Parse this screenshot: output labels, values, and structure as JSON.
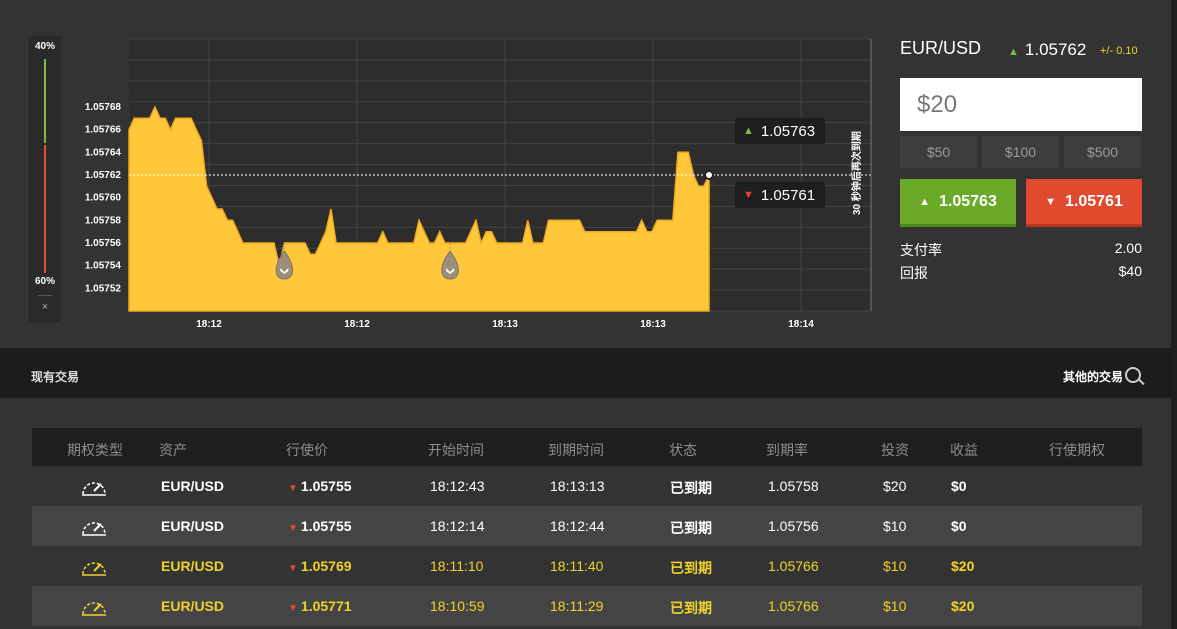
{
  "ratio": {
    "top_pct": "40%",
    "bottom_pct": "60%",
    "close": "×",
    "up_share": 0.4
  },
  "chart": {
    "y_ticks": [
      "1.05768",
      "1.05766",
      "1.05764",
      "1.05762",
      "1.05760",
      "1.05758",
      "1.05756",
      "1.05754",
      "1.05752"
    ],
    "x_ticks": [
      "18:12",
      "18:12",
      "18:13",
      "18:13",
      "18:14"
    ],
    "expiry_label": "30 秒钟后再次到期",
    "high_tag": "1.05763",
    "low_tag": "1.05761"
  },
  "chart_data": {
    "type": "area",
    "series": [
      {
        "values": [
          1.05766,
          1.05767,
          1.05767,
          1.05767,
          1.05767,
          1.05768,
          1.05767,
          1.05767,
          1.05766,
          1.05767,
          1.05767,
          1.05767,
          1.05767,
          1.05766,
          1.05765,
          1.05761,
          1.0576,
          1.05759,
          1.05759,
          1.05758,
          1.05758,
          1.05757,
          1.05756,
          1.05756,
          1.05756,
          1.05756,
          1.05756,
          1.05756,
          1.05756,
          1.05754,
          1.05756,
          1.05756,
          1.05756,
          1.05756,
          1.05756,
          1.05755,
          1.05755,
          1.05756,
          1.05757,
          1.05759,
          1.05756,
          1.05756,
          1.05756,
          1.05756,
          1.05756,
          1.05756,
          1.05756,
          1.05756,
          1.05756,
          1.05757,
          1.05756,
          1.05756,
          1.05756,
          1.05756,
          1.05756,
          1.05756,
          1.05758,
          1.05757,
          1.05756,
          1.05756,
          1.05757,
          1.05756,
          1.05756,
          1.05756,
          1.05756,
          1.05756,
          1.05757,
          1.05758,
          1.05756,
          1.05757,
          1.05757,
          1.05756,
          1.05756,
          1.05756,
          1.05756,
          1.05756,
          1.05756,
          1.05758,
          1.05756,
          1.05756,
          1.05756,
          1.05758,
          1.05758,
          1.05758,
          1.05758,
          1.05758,
          1.05758,
          1.05758,
          1.05757,
          1.05757,
          1.05757,
          1.05757,
          1.05757,
          1.05757,
          1.05757,
          1.05757,
          1.05757,
          1.05757,
          1.05757,
          1.05758,
          1.05757,
          1.05757,
          1.05758,
          1.05758,
          1.05758,
          1.05758,
          1.05764,
          1.05764,
          1.05764,
          1.05762,
          1.05761,
          1.05761,
          1.05762
        ]
      }
    ],
    "current_price": 1.05762,
    "ylim": [
      1.0575,
      1.05774
    ],
    "grid": true,
    "markers": [
      {
        "index": 30,
        "direction": "down"
      },
      {
        "index": 62,
        "direction": "down"
      }
    ]
  },
  "trade": {
    "pair": "EUR/USD",
    "price": "1.05762",
    "delta": "+/- 0.10",
    "amount": "$20",
    "presets": [
      "$50",
      "$100",
      "$500"
    ],
    "up_price": "1.05763",
    "down_price": "1.05761",
    "payout_label": "支付率",
    "payout_value": "2.00",
    "return_label": "回报",
    "return_value": "$40"
  },
  "trades": {
    "title": "现有交易",
    "other": "其他的交易",
    "headers": [
      "期权类型",
      "资产",
      "行使价",
      "开始时间",
      "到期时间",
      "状态",
      "到期率",
      "投资",
      "收益",
      "行使期权"
    ],
    "rows": [
      {
        "asset": "EUR/USD",
        "strike": "1.05755",
        "start": "18:12:43",
        "expiry": "18:13:13",
        "status": "已到期",
        "rate": "1.05758",
        "invest": "$20",
        "profit": "$0"
      },
      {
        "asset": "EUR/USD",
        "strike": "1.05755",
        "start": "18:12:14",
        "expiry": "18:12:44",
        "status": "已到期",
        "rate": "1.05756",
        "invest": "$10",
        "profit": "$0"
      },
      {
        "asset": "EUR/USD",
        "strike": "1.05769",
        "start": "18:11:10",
        "expiry": "18:11:40",
        "status": "已到期",
        "rate": "1.05766",
        "invest": "$10",
        "profit": "$20"
      },
      {
        "asset": "EUR/USD",
        "strike": "1.05771",
        "start": "18:10:59",
        "expiry": "18:11:29",
        "status": "已到期",
        "rate": "1.05766",
        "invest": "$10",
        "profit": "$20"
      }
    ]
  },
  "colors": {
    "area": "#ffc83a",
    "up": "#7dbe3c",
    "down": "#e04a2e",
    "win": "#f0d32a"
  }
}
